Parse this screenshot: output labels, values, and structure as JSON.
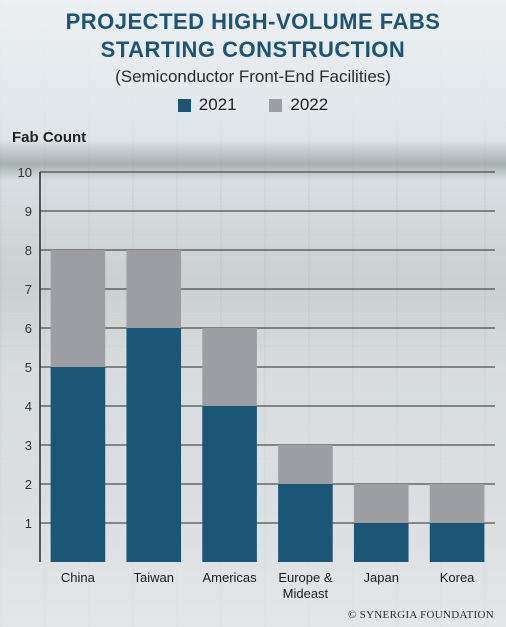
{
  "title_line1": "PROJECTED HIGH-VOLUME FABS",
  "title_line2": "STARTING CONSTRUCTION",
  "subtitle": "(Semiconductor Front-End Facilities)",
  "footer": "© SYNERGIA FOUNDATION",
  "colors": {
    "title": "#1d5474",
    "series_2021": "#1b5676",
    "series_2022": "#9d9ea3"
  },
  "chart_data": {
    "type": "bar",
    "stacked": true,
    "ylabel": "Fab Count",
    "xlabel": "",
    "ylim": [
      0,
      10
    ],
    "yticks": [
      "1",
      "2",
      "3",
      "4",
      "5",
      "6",
      "7",
      "8",
      "9",
      "10"
    ],
    "categories": [
      "China",
      "Taiwan",
      "Americas",
      "Europe &\nMideast",
      "Japan",
      "Korea"
    ],
    "series": [
      {
        "name": "2021",
        "values": [
          5,
          6,
          4,
          2,
          1,
          1
        ]
      },
      {
        "name": "2022",
        "values": [
          3,
          2,
          2,
          1,
          1,
          1
        ]
      }
    ],
    "legend_position": "top-center",
    "grid": true
  }
}
